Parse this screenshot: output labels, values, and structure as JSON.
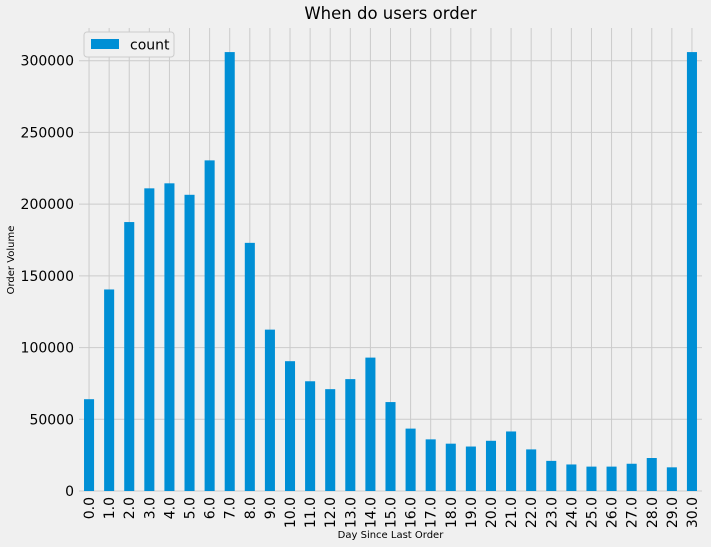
{
  "chart_data": {
    "type": "bar",
    "title": "When do users order",
    "xlabel": "Day Since Last Order",
    "ylabel": "Order Volume",
    "ylim": [
      0,
      320000
    ],
    "yticks": [
      0,
      50000,
      100000,
      150000,
      200000,
      250000,
      300000
    ],
    "ytick_labels": [
      "0",
      "50000",
      "100000",
      "150000",
      "200000",
      "250000",
      "300000"
    ],
    "grid": true,
    "legend_position": "top-left",
    "categories": [
      "0.0",
      "1.0",
      "2.0",
      "3.0",
      "4.0",
      "5.0",
      "6.0",
      "7.0",
      "8.0",
      "9.0",
      "10.0",
      "11.0",
      "12.0",
      "13.0",
      "14.0",
      "15.0",
      "16.0",
      "17.0",
      "18.0",
      "19.0",
      "20.0",
      "21.0",
      "22.0",
      "23.0",
      "24.0",
      "25.0",
      "26.0",
      "27.0",
      "28.0",
      "29.0",
      "30.0"
    ],
    "series": [
      {
        "name": "count",
        "color": "#008fd5",
        "values": [
          64000,
          140500,
          187500,
          211000,
          214500,
          206500,
          230500,
          306000,
          173000,
          112500,
          90500,
          76500,
          71000,
          78000,
          93000,
          62000,
          43500,
          36000,
          33000,
          31000,
          35000,
          41500,
          29000,
          21000,
          18500,
          17000,
          17000,
          19000,
          23000,
          16500,
          306000
        ]
      }
    ],
    "colors": {
      "background": "#f0f0f0",
      "grid": "#cbcbcb",
      "bar": "#008fd5"
    }
  }
}
